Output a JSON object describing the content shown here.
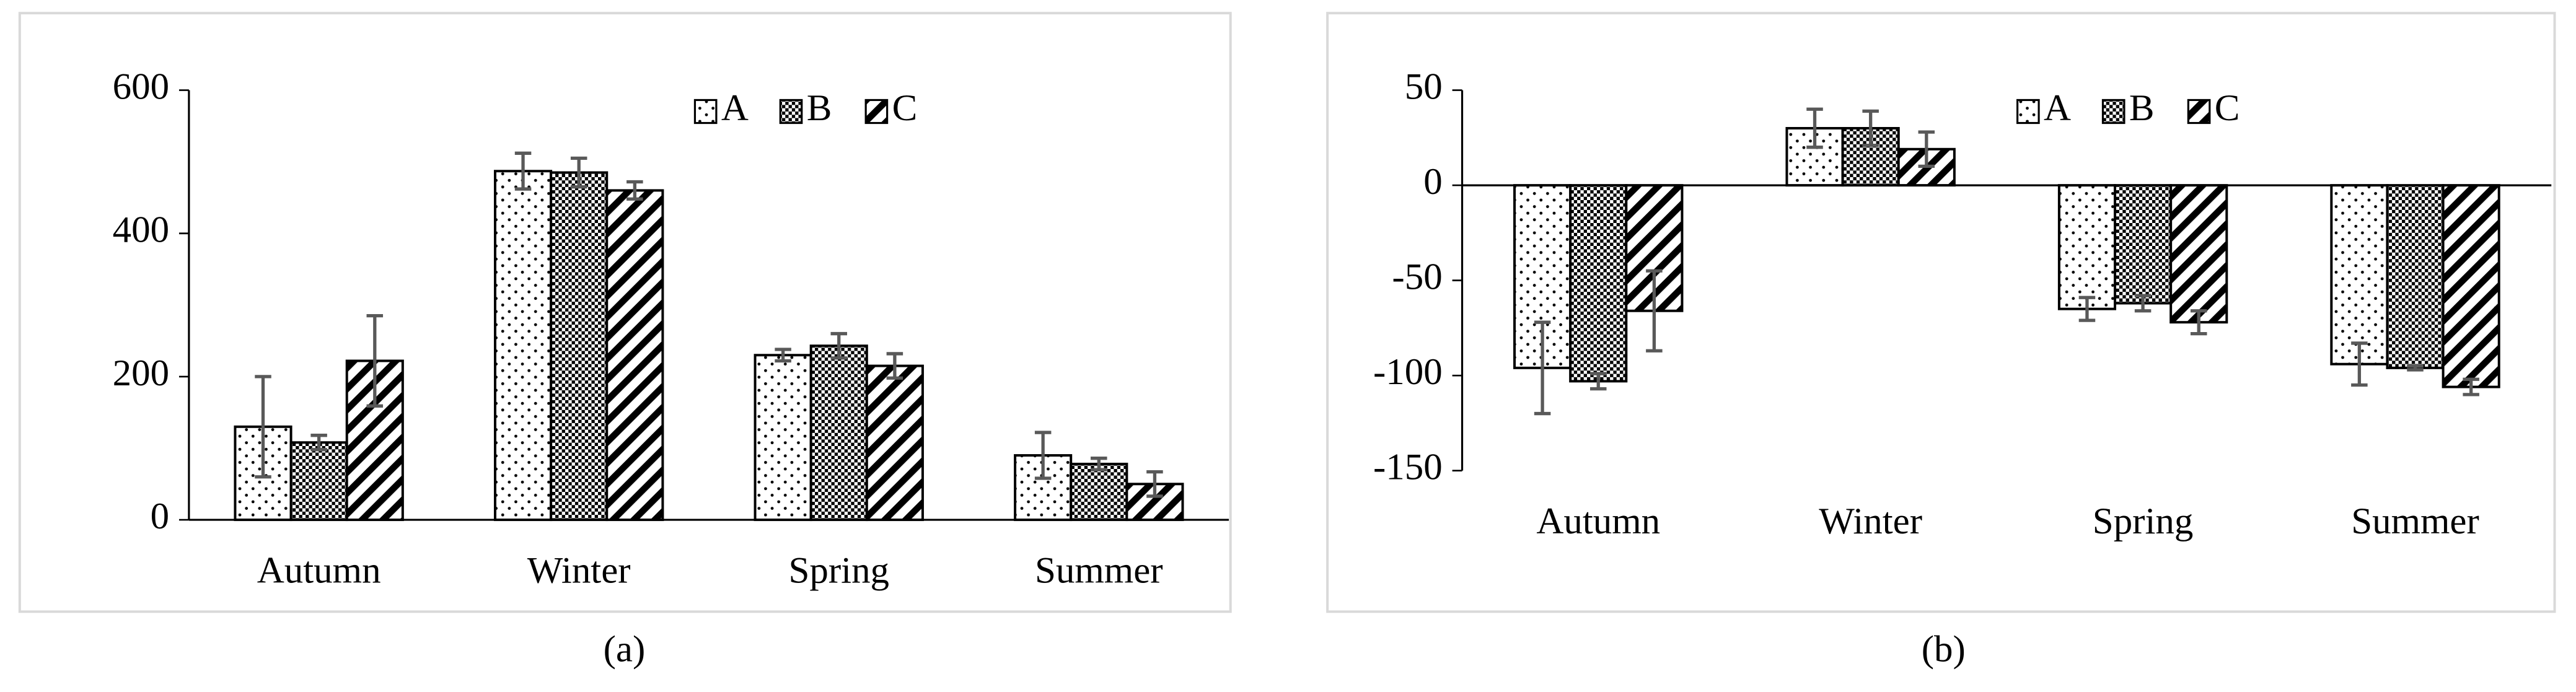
{
  "chart_data": [
    {
      "type": "bar",
      "caption": "(a)",
      "categories": [
        "Autumn",
        "Winter",
        "Spring",
        "Summer"
      ],
      "series": [
        {
          "name": "A",
          "color": "#000000",
          "values": [
            130,
            487,
            230,
            90
          ],
          "errors": [
            70,
            25,
            8,
            32
          ]
        },
        {
          "name": "B",
          "color": "#000000",
          "values": [
            108,
            485,
            243,
            78
          ],
          "errors": [
            10,
            20,
            17,
            8
          ]
        },
        {
          "name": "C",
          "color": "#000000",
          "values": [
            222,
            460,
            215,
            50
          ],
          "errors": [
            63,
            12,
            17,
            17
          ]
        }
      ],
      "ylim": [
        0,
        600
      ],
      "yticks": [
        0,
        200,
        400,
        600
      ],
      "legend": "upper right",
      "grid": false
    },
    {
      "type": "bar",
      "caption": "(b)",
      "categories": [
        "Autumn",
        "Winter",
        "Spring",
        "Summer"
      ],
      "series": [
        {
          "name": "A",
          "color": "#000000",
          "values": [
            -96,
            30,
            -65,
            -94
          ],
          "errors": [
            24,
            10,
            6,
            11
          ]
        },
        {
          "name": "B",
          "color": "#000000",
          "values": [
            -103,
            30,
            -62,
            -96
          ],
          "errors": [
            4,
            9,
            4,
            1
          ]
        },
        {
          "name": "C",
          "color": "#000000",
          "values": [
            -66,
            19,
            -72,
            -106
          ],
          "errors": [
            21,
            9,
            6,
            4
          ]
        }
      ],
      "ylim": [
        -150,
        50
      ],
      "yticks": [
        -150,
        -100,
        -50,
        0,
        50
      ],
      "legend": "upper right",
      "grid": false
    }
  ]
}
